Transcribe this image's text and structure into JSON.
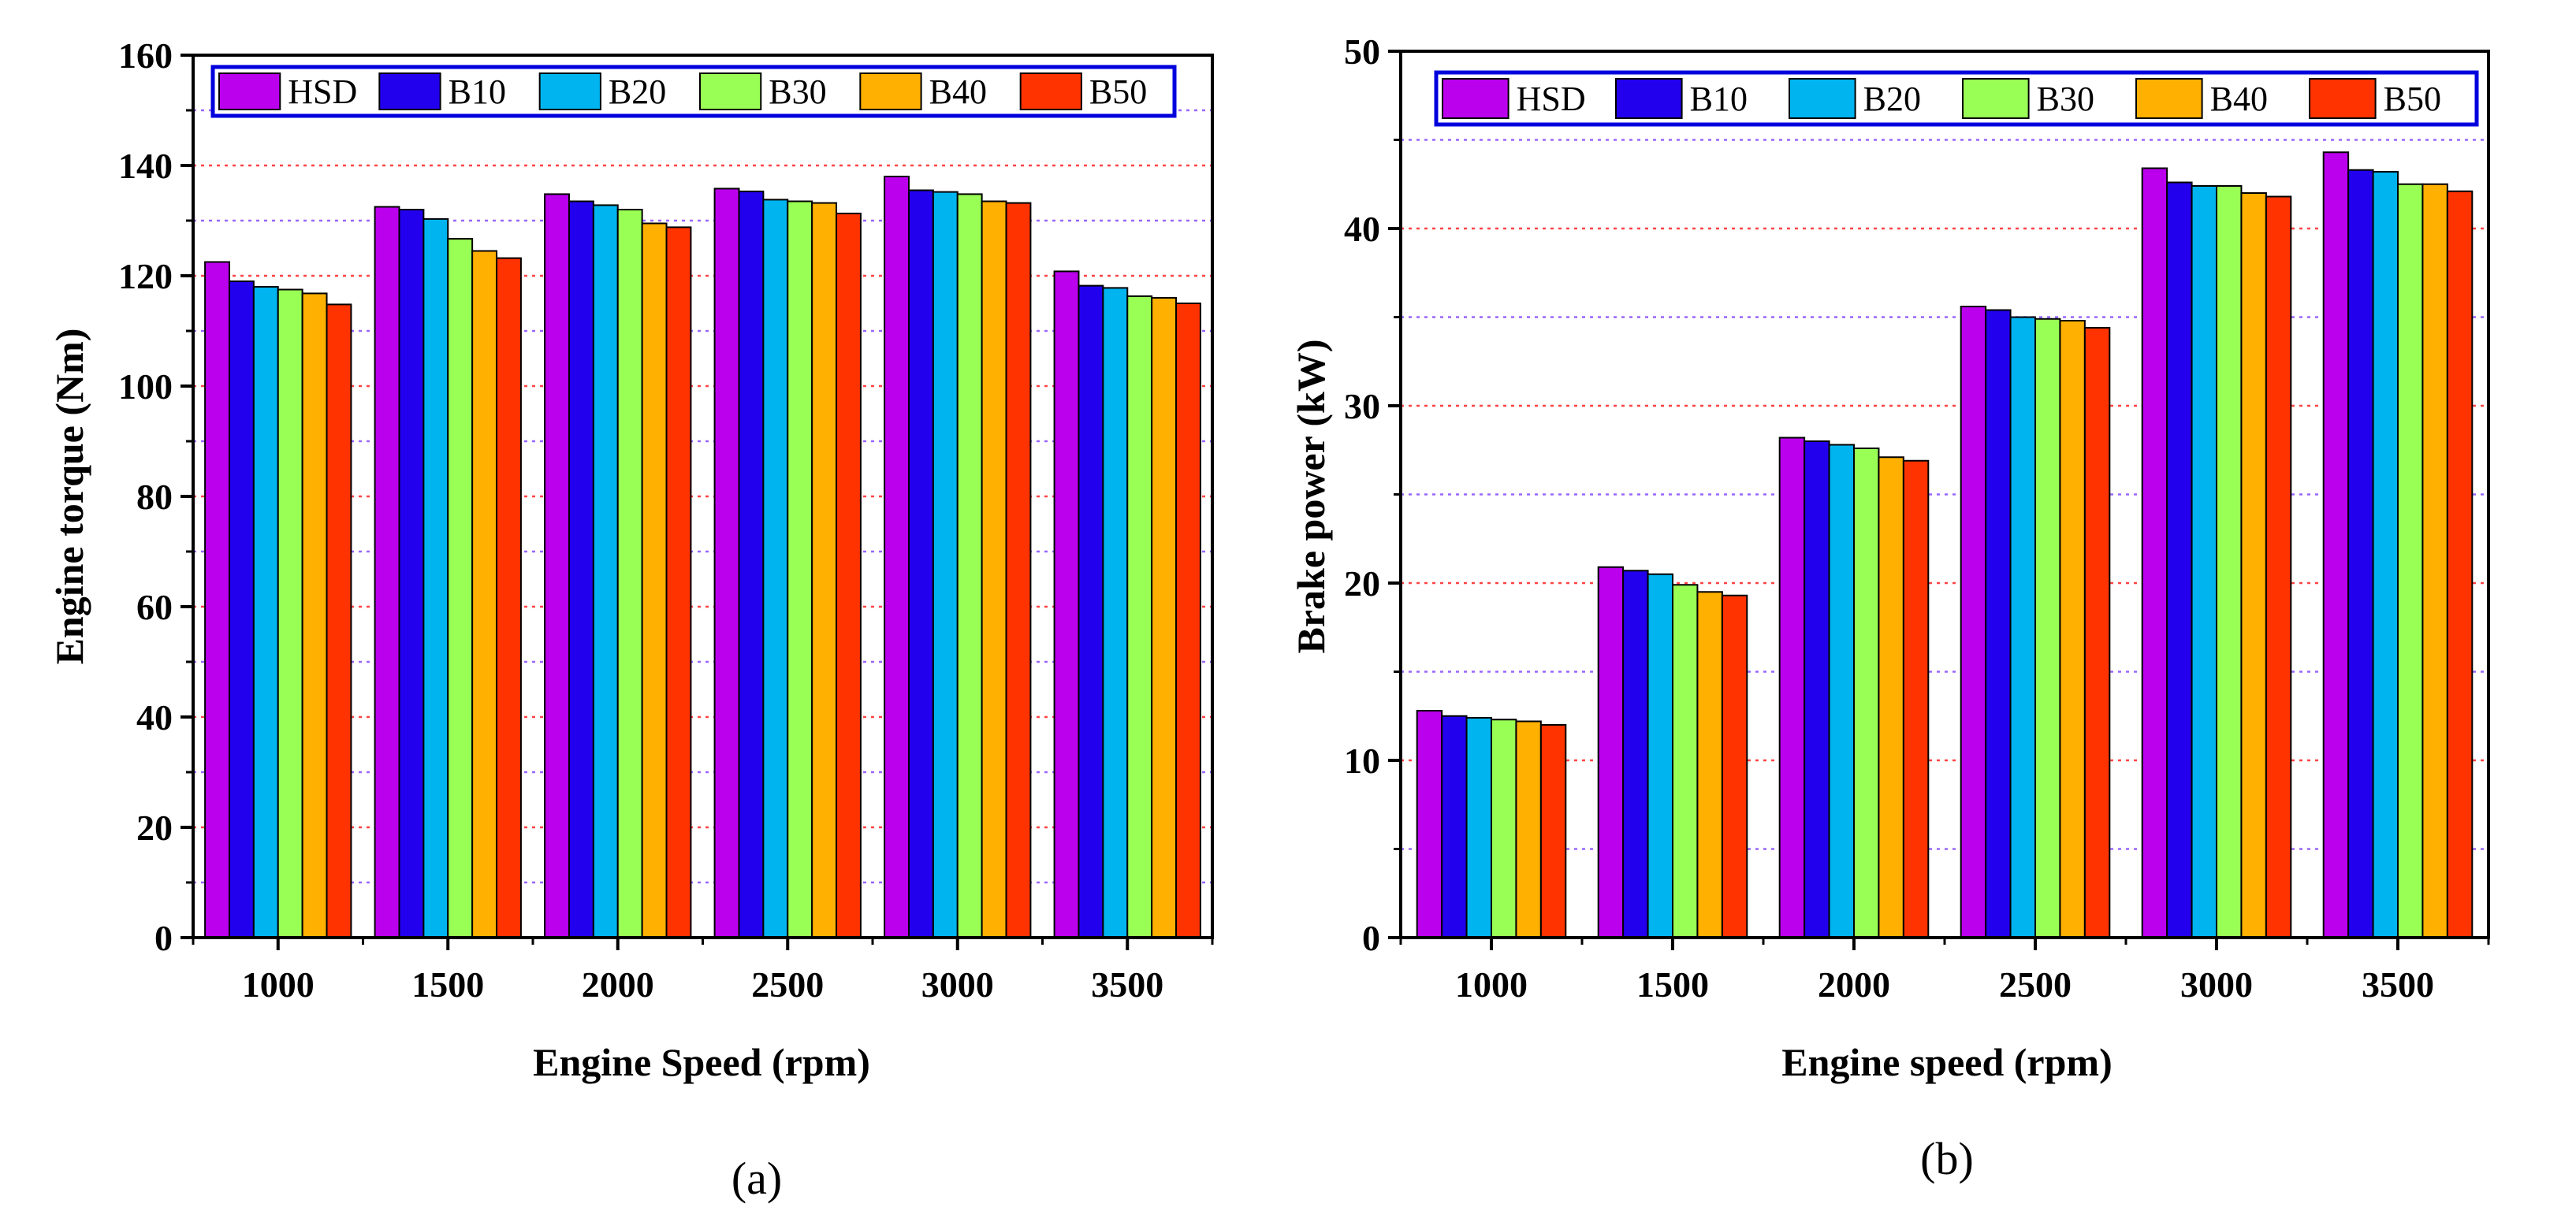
{
  "colors": {
    "HSD": "#bb00ee",
    "B10": "#2200ee",
    "B20": "#00b4f0",
    "B30": "#99ff55",
    "B40": "#ffb000",
    "B50": "#ff3300",
    "legend_border": "#0000dd",
    "grid_red": "#ff4444",
    "grid_purple": "#9966ff"
  },
  "chart_data": [
    {
      "type": "bar",
      "caption": "(a)",
      "title": "",
      "xlabel": "Engine Speed (rpm)",
      "ylabel": "Engine torque (Nm)",
      "ylim": [
        0,
        160
      ],
      "yticks": [
        0,
        20,
        40,
        60,
        80,
        100,
        120,
        140,
        160
      ],
      "grid": true,
      "legend_position": "top",
      "categories": [
        "1000",
        "1500",
        "2000",
        "2500",
        "3000",
        "3500"
      ],
      "series": [
        {
          "name": "HSD",
          "values": [
            122.5,
            132.5,
            134.8,
            135.8,
            138.0,
            120.8
          ]
        },
        {
          "name": "B10",
          "values": [
            119.0,
            132.0,
            133.5,
            135.3,
            135.5,
            118.2
          ]
        },
        {
          "name": "B20",
          "values": [
            118.0,
            130.3,
            132.8,
            133.8,
            135.2,
            117.8
          ]
        },
        {
          "name": "B30",
          "values": [
            117.5,
            126.7,
            132.0,
            133.5,
            134.8,
            116.3
          ]
        },
        {
          "name": "B40",
          "values": [
            116.8,
            124.5,
            129.5,
            133.2,
            133.5,
            116.0
          ]
        },
        {
          "name": "B50",
          "values": [
            114.8,
            123.2,
            128.8,
            131.3,
            133.2,
            115.0
          ]
        }
      ]
    },
    {
      "type": "bar",
      "caption": "(b)",
      "title": "",
      "xlabel": "Engine speed (rpm)",
      "ylabel": "Brake power (kW)",
      "ylim": [
        0,
        50
      ],
      "yticks": [
        0,
        10,
        20,
        30,
        40,
        50
      ],
      "grid": true,
      "legend_position": "top",
      "categories": [
        "1000",
        "1500",
        "2000",
        "2500",
        "3000",
        "3500"
      ],
      "series": [
        {
          "name": "HSD",
          "values": [
            12.8,
            20.9,
            28.2,
            35.6,
            43.4,
            44.3
          ]
        },
        {
          "name": "B10",
          "values": [
            12.5,
            20.7,
            28.0,
            35.4,
            42.6,
            43.3
          ]
        },
        {
          "name": "B20",
          "values": [
            12.4,
            20.5,
            27.8,
            35.0,
            42.4,
            43.2
          ]
        },
        {
          "name": "B30",
          "values": [
            12.3,
            19.9,
            27.6,
            34.9,
            42.4,
            42.5
          ]
        },
        {
          "name": "B40",
          "values": [
            12.2,
            19.5,
            27.1,
            34.8,
            42.0,
            42.5
          ]
        },
        {
          "name": "B50",
          "values": [
            12.0,
            19.3,
            26.9,
            34.4,
            41.8,
            42.1
          ]
        }
      ]
    }
  ]
}
